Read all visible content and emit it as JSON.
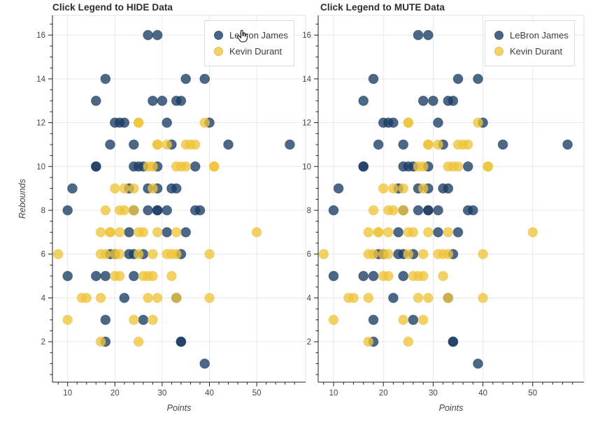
{
  "figures": [
    {
      "title": "Click Legend to HIDE Data",
      "has_y_axis_title": true,
      "has_cursor": true
    },
    {
      "title": "Click Legend to MUTE Data",
      "has_y_axis_title": false,
      "has_cursor": false
    }
  ],
  "colors": {
    "lebron_fill": "#1b3c64",
    "durant_fill": "#eec43c",
    "grid": "#e7e7e7",
    "outline": "#e0e0e0",
    "axis": "#1f1f1f"
  },
  "chart_data": {
    "type": "scatter",
    "title_left": "Click Legend to HIDE Data",
    "title_right": "Click Legend to MUTE Data",
    "xlabel": "Points",
    "ylabel": "Rebounds",
    "x_ticks": [
      10,
      20,
      30,
      40,
      50
    ],
    "y_ticks": [
      2,
      4,
      6,
      8,
      10,
      12,
      14,
      16
    ],
    "x_minor_step": 2,
    "y_minor_step": 0.5,
    "x_range": [
      6.8,
      60.4
    ],
    "y_range": [
      0.15,
      16.9
    ],
    "grid": true,
    "legend_position": "top_right",
    "series": [
      {
        "name": "LeBron James",
        "color_semantic": "navy-blue",
        "points": [
          [
            27,
            16
          ],
          [
            29,
            16
          ],
          [
            18,
            14
          ],
          [
            35,
            14
          ],
          [
            39,
            14
          ],
          [
            16,
            13
          ],
          [
            28,
            13
          ],
          [
            30,
            13
          ],
          [
            33,
            13
          ],
          [
            34,
            13
          ],
          [
            20,
            12
          ],
          [
            21,
            12
          ],
          [
            22,
            12
          ],
          [
            31,
            12
          ],
          [
            40,
            12
          ],
          [
            19,
            11
          ],
          [
            24,
            11
          ],
          [
            32,
            11
          ],
          [
            44,
            11
          ],
          [
            57,
            11
          ],
          [
            16,
            10
          ],
          [
            16,
            10
          ],
          [
            24,
            10
          ],
          [
            25,
            10
          ],
          [
            26,
            10
          ],
          [
            29,
            10
          ],
          [
            37,
            10
          ],
          [
            11,
            9
          ],
          [
            23,
            9
          ],
          [
            27,
            9
          ],
          [
            29,
            9
          ],
          [
            32,
            9
          ],
          [
            33,
            9
          ],
          [
            10,
            8
          ],
          [
            24,
            8
          ],
          [
            27,
            8
          ],
          [
            29,
            8
          ],
          [
            29,
            8
          ],
          [
            31,
            8
          ],
          [
            37,
            8
          ],
          [
            38,
            8
          ],
          [
            23,
            7
          ],
          [
            31,
            7
          ],
          [
            35,
            7
          ],
          [
            19,
            6
          ],
          [
            20,
            6
          ],
          [
            23,
            6
          ],
          [
            24,
            6
          ],
          [
            26,
            6
          ],
          [
            34,
            6
          ],
          [
            10,
            5
          ],
          [
            16,
            5
          ],
          [
            18,
            5
          ],
          [
            24,
            5
          ],
          [
            22,
            4
          ],
          [
            33,
            4
          ],
          [
            18,
            3
          ],
          [
            26,
            3
          ],
          [
            18,
            2
          ],
          [
            34,
            2
          ],
          [
            34,
            2
          ],
          [
            39,
            1
          ]
        ]
      },
      {
        "name": "Kevin Durant",
        "color_semantic": "gold-yellow",
        "points": [
          [
            25,
            12
          ],
          [
            25,
            12
          ],
          [
            39,
            12
          ],
          [
            29,
            11
          ],
          [
            29,
            11
          ],
          [
            31,
            11
          ],
          [
            35,
            11
          ],
          [
            36,
            11
          ],
          [
            37,
            11
          ],
          [
            27,
            10
          ],
          [
            28,
            10
          ],
          [
            33,
            10
          ],
          [
            34,
            10
          ],
          [
            35,
            10
          ],
          [
            41,
            10
          ],
          [
            41,
            10
          ],
          [
            20,
            9
          ],
          [
            22,
            9
          ],
          [
            24,
            9
          ],
          [
            28,
            9
          ],
          [
            18,
            8
          ],
          [
            21,
            8
          ],
          [
            22,
            8
          ],
          [
            24,
            8
          ],
          [
            17,
            7
          ],
          [
            19,
            7
          ],
          [
            19,
            7
          ],
          [
            21,
            7
          ],
          [
            25,
            7
          ],
          [
            26,
            7
          ],
          [
            29,
            7
          ],
          [
            33,
            7
          ],
          [
            50,
            7
          ],
          [
            8,
            6
          ],
          [
            17,
            6
          ],
          [
            18,
            6
          ],
          [
            20,
            6
          ],
          [
            21,
            6
          ],
          [
            25,
            6
          ],
          [
            28,
            6
          ],
          [
            31,
            6
          ],
          [
            32,
            6
          ],
          [
            33,
            6
          ],
          [
            40,
            6
          ],
          [
            20,
            5
          ],
          [
            21,
            5
          ],
          [
            26,
            5
          ],
          [
            27,
            5
          ],
          [
            28,
            5
          ],
          [
            32,
            5
          ],
          [
            13,
            4
          ],
          [
            14,
            4
          ],
          [
            17,
            4
          ],
          [
            27,
            4
          ],
          [
            29,
            4
          ],
          [
            33,
            4
          ],
          [
            40,
            4
          ],
          [
            10,
            3
          ],
          [
            24,
            3
          ],
          [
            28,
            3
          ],
          [
            17,
            2
          ],
          [
            25,
            2
          ]
        ]
      }
    ]
  }
}
